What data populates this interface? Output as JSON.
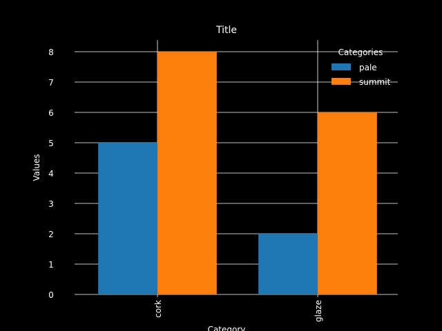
{
  "chart_data": {
    "type": "bar",
    "title": "Title",
    "xlabel": "Category",
    "ylabel": "Values",
    "categories": [
      "cork",
      "glaze"
    ],
    "series": [
      {
        "name": "pale",
        "values": [
          5,
          2
        ],
        "color": "#1f77b4"
      },
      {
        "name": "summit",
        "values": [
          8,
          6
        ],
        "color": "#ff7f0e"
      }
    ],
    "ylim": [
      0,
      8
    ],
    "yticks": [
      0,
      1,
      2,
      3,
      4,
      5,
      6,
      7,
      8
    ],
    "grid": true,
    "legend": {
      "title": "Categories",
      "placement": "top-right"
    },
    "colors": {
      "background": "#000000",
      "text": "#ffffff",
      "grid": "#ffffff"
    }
  }
}
